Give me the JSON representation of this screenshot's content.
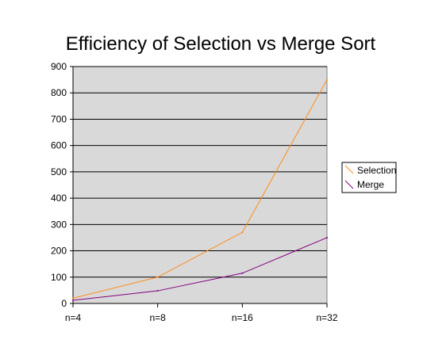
{
  "chart_data": {
    "type": "line",
    "title": "Efficiency of Selection vs Merge Sort",
    "categories": [
      "n=4",
      "n=8",
      "n=16",
      "n=32"
    ],
    "series": [
      {
        "name": "Selection",
        "values": [
          20,
          100,
          270,
          850
        ],
        "color": "#ff8c1a"
      },
      {
        "name": "Merge",
        "values": [
          12,
          48,
          115,
          250
        ],
        "color": "#800080"
      }
    ],
    "ylim": [
      0,
      900
    ],
    "yticks": [
      0,
      100,
      200,
      300,
      400,
      500,
      600,
      700,
      800,
      900
    ],
    "grid": true,
    "plot_background": "#d9d9d9",
    "legend_position": "right"
  }
}
